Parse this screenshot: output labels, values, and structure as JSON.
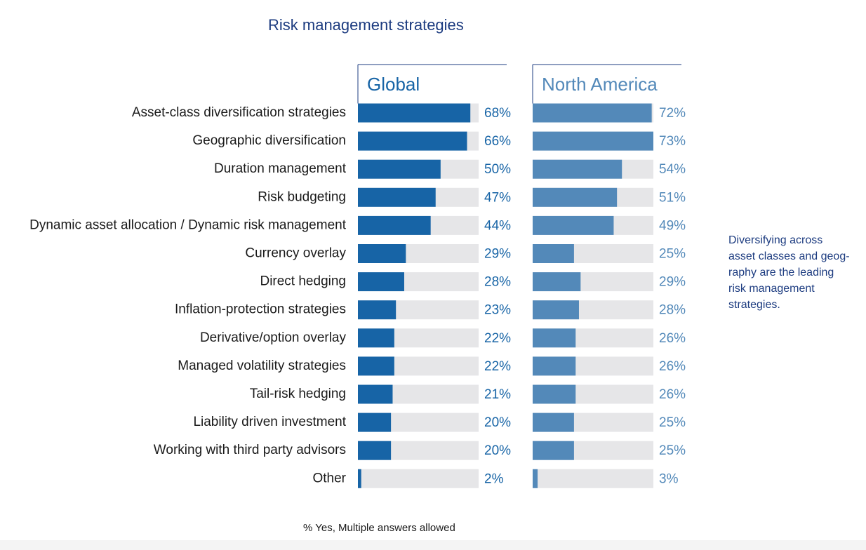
{
  "title": "Risk management strategies",
  "note": "% Yes, Multiple answers allowed",
  "annotation": [
    "Diversifying across",
    "asset classes and geog-",
    "raphy are the leading",
    "risk management",
    "strategies."
  ],
  "chart_data": [
    {
      "type": "bar",
      "orientation": "horizontal",
      "panel_title": "Global",
      "color": "#1764a6",
      "track_color": "#e6e6e8",
      "xlim": [
        0,
        73
      ],
      "categories": [
        "Asset-class diversification strategies",
        "Geographic diversification",
        "Duration management",
        "Risk budgeting",
        "Dynamic asset allocation / Dynamic risk management",
        "Currency overlay",
        "Direct hedging",
        "Inflation-protection strategies",
        "Derivative/option overlay",
        "Managed volatility strategies",
        "Tail-risk hedging",
        "Liability driven investment",
        "Working with third party advisors",
        "Other"
      ],
      "values": [
        68,
        66,
        50,
        47,
        44,
        29,
        28,
        23,
        22,
        22,
        21,
        20,
        20,
        2
      ],
      "value_labels": [
        "68%",
        "66%",
        "50%",
        "47%",
        "44%",
        "29%",
        "28%",
        "23%",
        "22%",
        "22%",
        "21%",
        "20%",
        "20%",
        "2%"
      ]
    },
    {
      "type": "bar",
      "orientation": "horizontal",
      "panel_title": "North America",
      "color": "#5389b9",
      "track_color": "#e6e6e8",
      "xlim": [
        0,
        73
      ],
      "values": [
        72,
        73,
        54,
        51,
        49,
        25,
        29,
        28,
        26,
        26,
        26,
        25,
        25,
        3
      ],
      "value_labels": [
        "72%",
        "73%",
        "54%",
        "51%",
        "49%",
        "25%",
        "29%",
        "28%",
        "26%",
        "26%",
        "26%",
        "25%",
        "25%",
        "3%"
      ]
    }
  ]
}
